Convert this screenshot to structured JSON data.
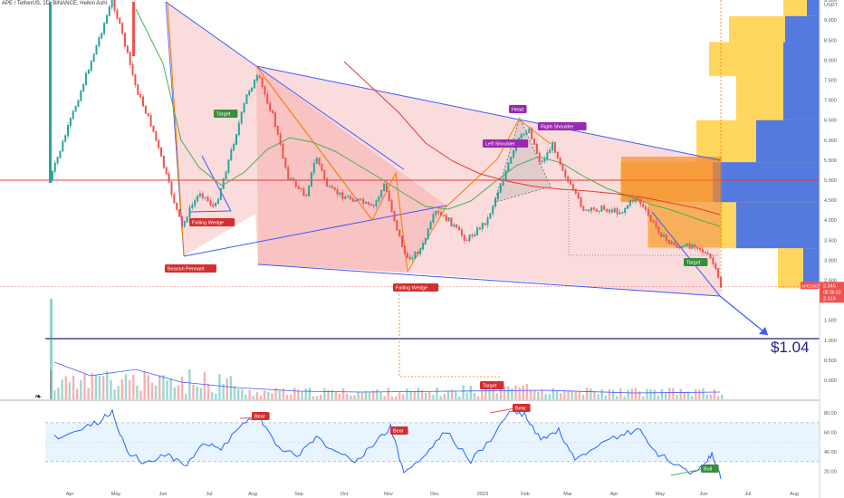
{
  "header": {
    "title": "APE / TetherUS, 1D, BINANCE, Heikin Ashi",
    "currency": "USDT"
  },
  "price_axis": {
    "ticks": [
      "9.500",
      "9.000",
      "8.500",
      "8.000",
      "7.500",
      "7.000",
      "6.500",
      "6.000",
      "5.500",
      "5.000",
      "4.500",
      "4.000",
      "3.500",
      "3.000",
      "2.500",
      "2.000",
      "1.500",
      "1.000",
      "0.500",
      "0.000"
    ],
    "tick_values": [
      9.5,
      9.0,
      8.5,
      8.0,
      7.5,
      7.0,
      6.5,
      6.0,
      5.5,
      5.0,
      4.5,
      4.0,
      3.5,
      3.0,
      2.5,
      2.0,
      1.5,
      1.0,
      0.5,
      0.0
    ],
    "price_label": {
      "symbol": "APEUSDT",
      "price": "2.346",
      "countdown": "05:36:23",
      "low": "2.319"
    }
  },
  "rsi_axis": {
    "ticks": [
      "80.00",
      "60.00",
      "40.00",
      "20.00"
    ],
    "tick_values": [
      80,
      60,
      40,
      20
    ],
    "band_upper": 70,
    "band_lower": 30
  },
  "time_axis": {
    "labels": [
      "Apr",
      "May",
      "Jun",
      "Jul",
      "Aug",
      "Sep",
      "Oct",
      "Nov",
      "Dec",
      "2023",
      "Feb",
      "Mar",
      "Apr",
      "May",
      "Jun",
      "Jul",
      "Aug"
    ]
  },
  "annotations": {
    "target_1": "Target",
    "falling_wedge_1": "Falling Wedge",
    "bearish_pennant": "Bearish Pennant",
    "falling_wedge_2": "Falling Wedge",
    "head": "Head",
    "left_shoulder": "Left Shoulder",
    "right_shoulder": "Right Shoulder",
    "target_2": "Target",
    "target_3": "Target",
    "target_price": "$1.04",
    "volume_target": "Target",
    "bear_1": "Bear",
    "bear_2": "Bear",
    "bear_3": "Bear",
    "bull": "Bull"
  },
  "colors": {
    "up": "#26a69a",
    "down": "#ef5350",
    "pattern_line": "#3d5afe",
    "wedge_fill": "#f5b2b2",
    "orange_line": "#f57c00",
    "green_ma": "#4caf50",
    "red_ma": "#e53935",
    "rsi_line": "#2962ff",
    "vp_blue": "#2962ff",
    "vp_yellow": "#ffc107",
    "label_red": "#d32f2f",
    "label_green": "#388e3c",
    "label_purple": "#9c27b0"
  },
  "chart_data": {
    "type": "candlestick",
    "symbol": "APE/USDT",
    "interval": "1D",
    "exchange": "BINANCE",
    "style": "Heikin Ashi",
    "ylim": [
      0,
      9.7
    ],
    "last_price": 2.346,
    "session_low": 2.319,
    "key_level": 1.04,
    "resistance": 5.0,
    "price_path": [
      {
        "x": "2022-03-17",
        "y": 5.0
      },
      {
        "x": "2022-04-28",
        "y": 9.5
      },
      {
        "x": "2022-05-05",
        "y": 8.6
      },
      {
        "x": "2022-05-14",
        "y": 7.3
      },
      {
        "x": "2022-05-25",
        "y": 6.3
      },
      {
        "x": "2022-06-05",
        "y": 4.9
      },
      {
        "x": "2022-06-14",
        "y": 3.8
      },
      {
        "x": "2022-06-18",
        "y": 4.2
      },
      {
        "x": "2022-06-26",
        "y": 4.7
      },
      {
        "x": "2022-07-06",
        "y": 4.3
      },
      {
        "x": "2022-07-16",
        "y": 5.6
      },
      {
        "x": "2022-07-28",
        "y": 7.2
      },
      {
        "x": "2022-08-04",
        "y": 7.6
      },
      {
        "x": "2022-08-14",
        "y": 6.6
      },
      {
        "x": "2022-08-24",
        "y": 5.1
      },
      {
        "x": "2022-09-05",
        "y": 4.6
      },
      {
        "x": "2022-09-12",
        "y": 5.6
      },
      {
        "x": "2022-09-20",
        "y": 4.8
      },
      {
        "x": "2022-09-30",
        "y": 4.6
      },
      {
        "x": "2022-10-10",
        "y": 4.5
      },
      {
        "x": "2022-10-20",
        "y": 4.3
      },
      {
        "x": "2022-10-28",
        "y": 4.9
      },
      {
        "x": "2022-11-06",
        "y": 3.7
      },
      {
        "x": "2022-11-12",
        "y": 3.0
      },
      {
        "x": "2022-11-22",
        "y": 3.3
      },
      {
        "x": "2022-12-01",
        "y": 4.2
      },
      {
        "x": "2022-12-10",
        "y": 4.0
      },
      {
        "x": "2022-12-22",
        "y": 3.5
      },
      {
        "x": "2023-01-05",
        "y": 4.0
      },
      {
        "x": "2023-01-14",
        "y": 4.9
      },
      {
        "x": "2023-01-26",
        "y": 6.0
      },
      {
        "x": "2023-02-02",
        "y": 6.3
      },
      {
        "x": "2023-02-10",
        "y": 5.4
      },
      {
        "x": "2023-02-18",
        "y": 5.9
      },
      {
        "x": "2023-03-01",
        "y": 4.9
      },
      {
        "x": "2023-03-12",
        "y": 4.2
      },
      {
        "x": "2023-03-22",
        "y": 4.3
      },
      {
        "x": "2023-04-05",
        "y": 4.2
      },
      {
        "x": "2023-04-15",
        "y": 4.6
      },
      {
        "x": "2023-04-25",
        "y": 4.0
      },
      {
        "x": "2023-05-05",
        "y": 3.5
      },
      {
        "x": "2023-05-15",
        "y": 3.3
      },
      {
        "x": "2023-05-25",
        "y": 3.4
      },
      {
        "x": "2023-06-05",
        "y": 3.0
      },
      {
        "x": "2023-06-11",
        "y": 2.35
      }
    ],
    "rsi_path": [
      {
        "x": "2022-03-20",
        "y": 55
      },
      {
        "x": "2022-04-05",
        "y": 62
      },
      {
        "x": "2022-04-18",
        "y": 70
      },
      {
        "x": "2022-04-28",
        "y": 82
      },
      {
        "x": "2022-05-08",
        "y": 40
      },
      {
        "x": "2022-05-20",
        "y": 28
      },
      {
        "x": "2022-06-05",
        "y": 38
      },
      {
        "x": "2022-06-15",
        "y": 24
      },
      {
        "x": "2022-06-28",
        "y": 50
      },
      {
        "x": "2022-07-10",
        "y": 42
      },
      {
        "x": "2022-07-25",
        "y": 72
      },
      {
        "x": "2022-08-05",
        "y": 76
      },
      {
        "x": "2022-08-18",
        "y": 45
      },
      {
        "x": "2022-08-30",
        "y": 35
      },
      {
        "x": "2022-09-12",
        "y": 55
      },
      {
        "x": "2022-09-25",
        "y": 40
      },
      {
        "x": "2022-10-08",
        "y": 32
      },
      {
        "x": "2022-10-20",
        "y": 45
      },
      {
        "x": "2022-11-01",
        "y": 66
      },
      {
        "x": "2022-11-10",
        "y": 18
      },
      {
        "x": "2022-11-25",
        "y": 38
      },
      {
        "x": "2022-12-08",
        "y": 62
      },
      {
        "x": "2022-12-25",
        "y": 30
      },
      {
        "x": "2023-01-10",
        "y": 58
      },
      {
        "x": "2023-01-20",
        "y": 82
      },
      {
        "x": "2023-01-30",
        "y": 78
      },
      {
        "x": "2023-02-10",
        "y": 52
      },
      {
        "x": "2023-02-22",
        "y": 62
      },
      {
        "x": "2023-03-05",
        "y": 30
      },
      {
        "x": "2023-03-20",
        "y": 44
      },
      {
        "x": "2023-04-05",
        "y": 58
      },
      {
        "x": "2023-04-18",
        "y": 62
      },
      {
        "x": "2023-04-28",
        "y": 38
      },
      {
        "x": "2023-05-10",
        "y": 30
      },
      {
        "x": "2023-05-20",
        "y": 18
      },
      {
        "x": "2023-05-30",
        "y": 25
      },
      {
        "x": "2023-06-05",
        "y": 38
      },
      {
        "x": "2023-06-11",
        "y": 12
      }
    ]
  }
}
